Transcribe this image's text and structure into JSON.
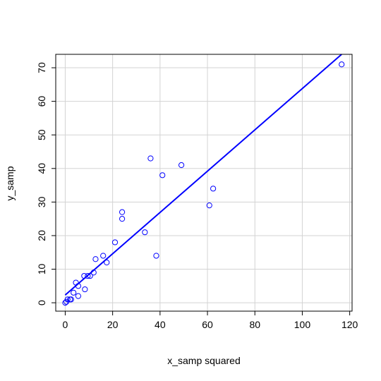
{
  "chart_data": {
    "type": "scatter",
    "title": "",
    "xlabel": "x_samp squared",
    "ylabel": "y_samp",
    "xlim": [
      -4,
      121
    ],
    "ylim": [
      -2.5,
      74
    ],
    "x_ticks": [
      0,
      20,
      40,
      60,
      80,
      100,
      120
    ],
    "y_ticks": [
      0,
      10,
      20,
      30,
      40,
      50,
      60,
      70
    ],
    "grid": true,
    "point_color": "#0000ff",
    "line_color": "#0000ff",
    "series": [
      {
        "points": [
          [
            0.0,
            0
          ],
          [
            0.5,
            0.3
          ],
          [
            1.0,
            1
          ],
          [
            2.0,
            1
          ],
          [
            2.5,
            1
          ],
          [
            3.5,
            3
          ],
          [
            4.5,
            6
          ],
          [
            5.5,
            5
          ],
          [
            5.5,
            2
          ],
          [
            8.0,
            8
          ],
          [
            8.3,
            4
          ],
          [
            9.5,
            8
          ],
          [
            10.5,
            8
          ],
          [
            12.0,
            9
          ],
          [
            12.8,
            13
          ],
          [
            16.0,
            14
          ],
          [
            17.5,
            12
          ],
          [
            21.0,
            18
          ],
          [
            24.0,
            27
          ],
          [
            24.0,
            25
          ],
          [
            33.6,
            21
          ],
          [
            36.0,
            43
          ],
          [
            38.4,
            14
          ],
          [
            41.0,
            38
          ],
          [
            49.0,
            41
          ],
          [
            60.8,
            29
          ],
          [
            62.4,
            34
          ],
          [
            116.6,
            71
          ]
        ]
      }
    ],
    "fit_line": {
      "intercept": 2.3,
      "slope": 0.615
    }
  }
}
